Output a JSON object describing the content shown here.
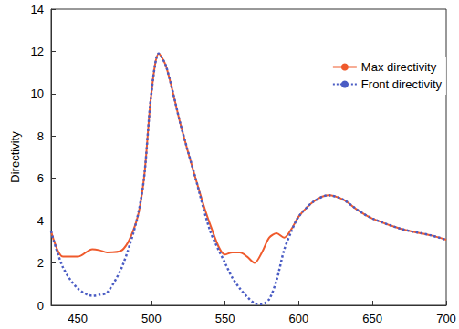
{
  "chart_data": {
    "type": "line",
    "y_label": "Directivity",
    "x": [
      432,
      440,
      450,
      460,
      465,
      470,
      480,
      490,
      495,
      500,
      505,
      510,
      520,
      530,
      540,
      550,
      555,
      560,
      565,
      570,
      575,
      580,
      585,
      590,
      595,
      600,
      610,
      620,
      630,
      640,
      650,
      670,
      690,
      700
    ],
    "series": [
      {
        "name": "Max directivity",
        "color": "#ef5a2c",
        "line_style": "solid",
        "values": [
          3.5,
          2.3,
          2.3,
          2.65,
          2.6,
          2.5,
          2.6,
          4.0,
          6.0,
          10.0,
          11.9,
          11.3,
          8.5,
          6.0,
          3.8,
          2.4,
          2.5,
          2.5,
          2.3,
          2.0,
          2.5,
          3.2,
          3.4,
          3.2,
          3.6,
          4.2,
          4.9,
          5.2,
          5.0,
          4.5,
          4.1,
          3.6,
          3.3,
          3.1
        ]
      },
      {
        "name": "Front directivity",
        "color": "#4a5cc4",
        "line_style": "dotted",
        "values": [
          3.5,
          1.8,
          0.8,
          0.45,
          0.5,
          0.6,
          1.8,
          4.0,
          6.0,
          10.0,
          11.9,
          11.3,
          8.5,
          6.0,
          3.5,
          2.0,
          1.3,
          0.8,
          0.4,
          0.1,
          0.05,
          0.3,
          1.2,
          2.6,
          3.5,
          4.2,
          4.9,
          5.2,
          5.0,
          4.5,
          4.1,
          3.6,
          3.3,
          3.1
        ]
      }
    ],
    "xlim": [
      432,
      700
    ],
    "xticks": [
      450,
      500,
      550,
      600,
      650,
      700
    ],
    "ylim": [
      0,
      14
    ],
    "yticks": [
      0,
      2,
      4,
      6,
      8,
      10,
      12,
      14
    ],
    "marker": "none",
    "legend": "top-right",
    "grid": false
  }
}
